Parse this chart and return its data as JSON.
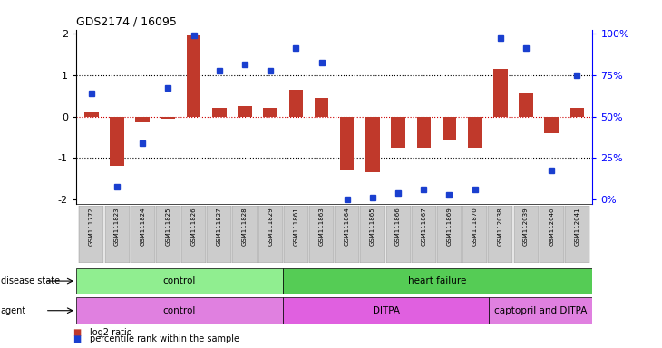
{
  "title": "GDS2174 / 16095",
  "samples": [
    "GSM111772",
    "GSM111823",
    "GSM111824",
    "GSM111825",
    "GSM111826",
    "GSM111827",
    "GSM111828",
    "GSM111829",
    "GSM111861",
    "GSM111863",
    "GSM111864",
    "GSM111865",
    "GSM111866",
    "GSM111867",
    "GSM111869",
    "GSM111870",
    "GSM112038",
    "GSM112039",
    "GSM112040",
    "GSM112041"
  ],
  "log2_ratio": [
    0.1,
    -1.2,
    -0.15,
    -0.05,
    1.95,
    0.2,
    0.25,
    0.2,
    0.65,
    0.45,
    -1.3,
    -1.35,
    -0.75,
    -0.75,
    -0.55,
    -0.75,
    1.15,
    0.55,
    -0.4,
    0.2
  ],
  "pct_rank": [
    0.55,
    -1.7,
    -0.65,
    0.7,
    1.95,
    1.1,
    1.25,
    1.1,
    1.65,
    1.3,
    -2.0,
    -1.95,
    -1.85,
    -1.75,
    -1.9,
    -1.75,
    1.9,
    1.65,
    -1.3,
    1.0
  ],
  "bar_color": "#c0392b",
  "dot_color": "#1a3fcf",
  "ylim": [
    -2.1,
    2.1
  ],
  "yticks": [
    -2,
    -1,
    0,
    1,
    2
  ],
  "y2ticks_mapped": [
    -2,
    -1,
    0,
    1,
    2
  ],
  "y2ticks_labels": [
    "0%",
    "25%",
    "50%",
    "75%",
    "100%"
  ],
  "dotted_lines": [
    1.0,
    -1.0
  ],
  "red_dashed_line": 0.0,
  "disease_state": [
    {
      "label": "control",
      "start": 0,
      "end": 8,
      "color": "#90ee90"
    },
    {
      "label": "heart failure",
      "start": 8,
      "end": 20,
      "color": "#55cc55"
    }
  ],
  "agent": [
    {
      "label": "control",
      "start": 0,
      "end": 8,
      "color": "#e080e0"
    },
    {
      "label": "DITPA",
      "start": 8,
      "end": 16,
      "color": "#e060e0"
    },
    {
      "label": "captopril and DITPA",
      "start": 16,
      "end": 20,
      "color": "#e080e0"
    }
  ],
  "legend_items": [
    {
      "label": "log2 ratio",
      "color": "#c0392b"
    },
    {
      "label": "percentile rank within the sample",
      "color": "#1a3fcf"
    }
  ]
}
